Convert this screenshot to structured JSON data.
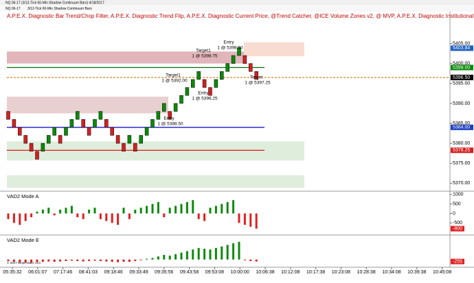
{
  "window": {
    "title": "NQ 06-17 (3/12-Tick 60-Min Shadow Continuum Bars)  4/18/2017",
    "toolbar_symbol": "NQ 06-17",
    "toolbar_bars": "3/12-Tick 60-Min Shadow Continuum Bars",
    "copyright": "© 2017 NinjaTrader, LLC"
  },
  "chart_data": [
    {
      "type": "renko",
      "indicators_label": "A.P.E.X. Diagnostic Bar Trend/Chop Filter, A.P.E.X. Diagnostic Trend Flip, A.P.E.X. Diagnostic Current Price, @Trend Catcher, @ICE Volume Zones v2, @ MVP, A.P.E.X. Diagnostic Institutional Zones, A.P.E.X. Diagn...",
      "bricks": [
        [
          5388,
          5386
        ],
        [
          5386,
          5384
        ],
        [
          5384,
          5382
        ],
        [
          5382,
          5380
        ],
        [
          5380,
          5378
        ],
        [
          5378,
          5376
        ],
        [
          5378,
          5380
        ],
        [
          5380,
          5382
        ],
        [
          5382,
          5384
        ],
        [
          5382,
          5380
        ],
        [
          5382,
          5384
        ],
        [
          5384,
          5386
        ],
        [
          5386,
          5388
        ],
        [
          5386,
          5384
        ],
        [
          5384,
          5382
        ],
        [
          5384,
          5386
        ],
        [
          5386,
          5388
        ],
        [
          5386,
          5384
        ],
        [
          5384,
          5382
        ],
        [
          5382,
          5380
        ],
        [
          5380,
          5378
        ],
        [
          5380,
          5382
        ],
        [
          5380,
          5378
        ],
        [
          5380,
          5382
        ],
        [
          5382,
          5384
        ],
        [
          5384,
          5386
        ],
        [
          5386,
          5388
        ],
        [
          5388,
          5390
        ],
        [
          5388,
          5386
        ],
        [
          5388,
          5390
        ],
        [
          5390,
          5392
        ],
        [
          5392,
          5394
        ],
        [
          5394,
          5396
        ],
        [
          5396,
          5398
        ],
        [
          5396,
          5394
        ],
        [
          5394,
          5392
        ],
        [
          5394,
          5396
        ],
        [
          5396,
          5398
        ],
        [
          5398,
          5400
        ],
        [
          5400,
          5402
        ],
        [
          5402,
          5404
        ],
        [
          5402,
          5400
        ],
        [
          5400,
          5398
        ],
        [
          5398,
          5396
        ]
      ],
      "up_color": "#0a8a0a",
      "down_color": "#d42020",
      "ylim": [
        5368,
        5413
      ],
      "yticks": [
        {
          "value": 5405,
          "label": "5405.00"
        },
        {
          "value": 5400,
          "label": "5400.00"
        },
        {
          "value": 5395,
          "label": "5395.00"
        },
        {
          "value": 5390,
          "label": "5390.00"
        },
        {
          "value": 5385,
          "label": "5385.00"
        },
        {
          "value": 5380,
          "label": "5380.00"
        },
        {
          "value": 5375,
          "label": "5375.00"
        },
        {
          "value": 5370,
          "label": "5370.00"
        }
      ],
      "levels": [
        {
          "value": 5403.84,
          "label": "5403.84",
          "color": "#1f5fbf",
          "line_color": "#1f5fbf",
          "style": "none"
        },
        {
          "value": 5399,
          "label": "5399.00",
          "color": "#0a8a0a",
          "line_color": "#0a6a0a",
          "style": "solid"
        },
        {
          "value": 5396.5,
          "label": "5396.50",
          "color": "#000000",
          "line_color": "#e07000",
          "style": "dashed"
        },
        {
          "value": 5384,
          "label": "5384.00",
          "color": "#1f3fbf",
          "line_color": "#0000c0",
          "style": "solid"
        },
        {
          "value": 5378.25,
          "label": "5378.25",
          "color": "#d42020",
          "line_color": "#e00000",
          "style": "solid"
        }
      ],
      "zones": [
        {
          "top": 5403,
          "bottom": 5400,
          "color": "#d9a3a8"
        },
        {
          "top": 5405.3,
          "bottom": 5401.8,
          "color": "#f6d3c6"
        },
        {
          "top": 5391.7,
          "bottom": 5387.5,
          "color": "#e2c4c6"
        },
        {
          "top": 5380.5,
          "bottom": 5375.7,
          "color": "#d7e8d5"
        },
        {
          "top": 5372,
          "bottom": 5368.8,
          "color": "#d7e8d5"
        }
      ],
      "annotations": [
        [
          "Entry",
          "1 @ 5398.50"
        ],
        [
          "Target1",
          "1 @ 5398.75"
        ],
        [
          "Target1",
          "1 @ 5392.00"
        ],
        [
          "Entry",
          "1 @ 5396.25"
        ],
        [
          "Entry",
          "1 @ 5388.50"
        ],
        [
          "Target",
          "1 @ 5397.25"
        ]
      ],
      "x_labels": [
        "05:35:32",
        "06:01:07",
        "07:17:46",
        "08:41:03",
        "09:18:46",
        "09:33:49",
        "09:35:56",
        "09:43:58",
        "09:53:08",
        "10:00:00",
        "10:06:38",
        "10:12:08",
        "10:17:38",
        "10:23:08",
        "10:28:38",
        "10:34:08",
        "10:39:38",
        "10:45:08"
      ]
    },
    {
      "type": "bar",
      "title": "VAD2 Mode A",
      "up_color": "#0a8a0a",
      "down_color": "#e02020",
      "values": [
        -300,
        -500,
        -600,
        -400,
        -200,
        100,
        200,
        300,
        -100,
        200,
        300,
        400,
        -200,
        -300,
        200,
        300,
        -300,
        -400,
        -500,
        -600,
        300,
        -300,
        200,
        300,
        400,
        500,
        600,
        -200,
        300,
        400,
        500,
        600,
        700,
        -300,
        -400,
        300,
        400,
        500,
        600,
        700,
        -500,
        -600,
        -700,
        -800
      ],
      "ylim": [
        -1100,
        1100
      ],
      "yticks": [
        1000,
        500,
        0,
        -500
      ]
    },
    {
      "type": "bar",
      "title": "VAD2 Mode E",
      "up_color": "#0a8a0a",
      "down_color": "#e02020",
      "values": [
        -200,
        -300,
        -350,
        -400,
        -400,
        -350,
        -300,
        -250,
        -300,
        -250,
        -200,
        -150,
        -200,
        -250,
        -200,
        -150,
        -200,
        -250,
        -300,
        -350,
        -300,
        -300,
        -200,
        -100,
        100,
        200,
        400,
        600,
        500,
        700,
        900,
        1100,
        1300,
        1500,
        1400,
        1300,
        1500,
        1700,
        1900,
        2100,
        2300,
        -100,
        -200,
        -255
      ],
      "ylim": [
        -1000,
        3000
      ],
      "yticks": []
    }
  ]
}
